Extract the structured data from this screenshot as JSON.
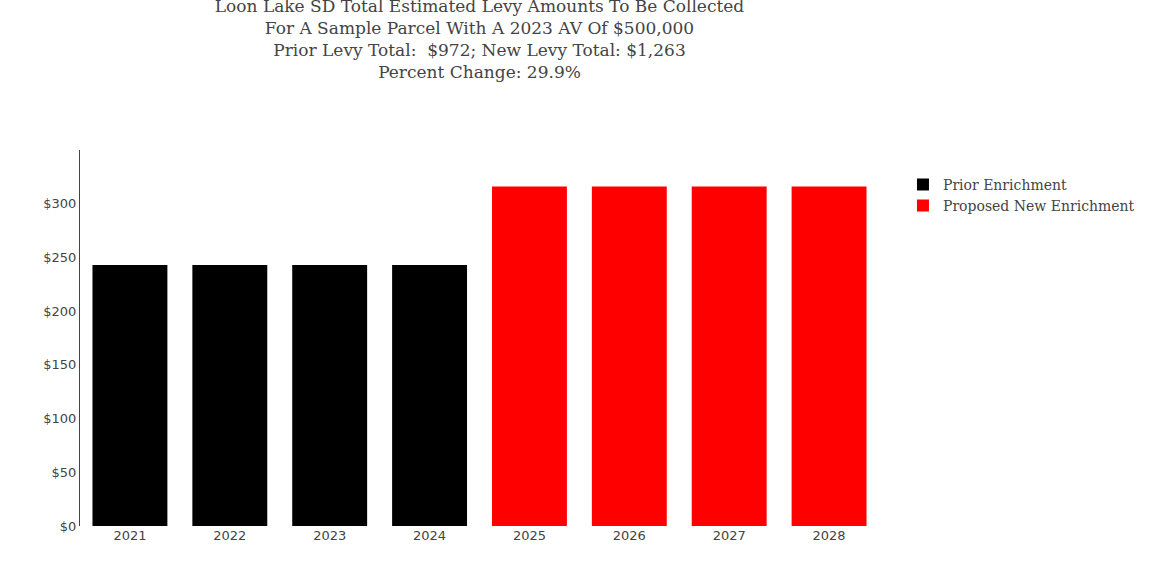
{
  "chart_data": {
    "type": "bar",
    "title": "Loon Lake SD Total Estimated Levy Amounts To Be Collected\nFor A Sample Parcel With A 2023 AV Of $500,000\nPrior Levy Total:  $972; New Levy Total: $1,263\nPercent Change: 29.9%",
    "categories": [
      "2021",
      "2022",
      "2023",
      "2024",
      "2025",
      "2026",
      "2027",
      "2028"
    ],
    "series": [
      {
        "name": "Prior Enrichment",
        "color": "#000000",
        "values": [
          243,
          243,
          243,
          243,
          null,
          null,
          null,
          null
        ]
      },
      {
        "name": "Proposed New Enrichment",
        "color": "#ff0000",
        "values": [
          null,
          null,
          null,
          null,
          316,
          316,
          316,
          316
        ]
      }
    ],
    "ylim": [
      0,
      350
    ],
    "yticks": [
      {
        "value": 0,
        "label": "$0"
      },
      {
        "value": 50,
        "label": "$50"
      },
      {
        "value": 100,
        "label": "$100"
      },
      {
        "value": 150,
        "label": "$150"
      },
      {
        "value": 200,
        "label": "$200"
      },
      {
        "value": 250,
        "label": "$250"
      },
      {
        "value": 300,
        "label": "$300"
      }
    ],
    "grid": false,
    "legend": "right"
  }
}
